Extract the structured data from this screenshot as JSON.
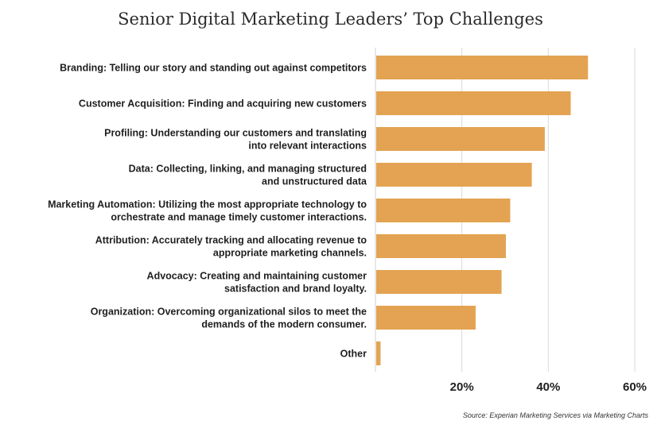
{
  "chart_data": {
    "type": "bar",
    "orientation": "horizontal",
    "title": "Senior Digital Marketing Leaders’ Top Challenges",
    "categories": [
      [
        "Branding: Telling our story and standing out against competitors"
      ],
      [
        "Customer Acquisition: Finding and acquiring new customers"
      ],
      [
        "Profiling: Understanding our customers and translating",
        "into relevant interactions"
      ],
      [
        "Data: Collecting, linking, and managing structured",
        "and unstructured data"
      ],
      [
        "Marketing Automation: Utilizing the most appropriate technology to",
        "orchestrate and manage timely customer interactions."
      ],
      [
        "Attribution: Accurately tracking and allocating revenue to",
        "appropriate marketing channels."
      ],
      [
        "Advocacy: Creating and maintaining customer",
        "satisfaction and brand loyalty."
      ],
      [
        "Organization: Overcoming organizational silos to meet the",
        "demands of the modern consumer."
      ],
      [
        "Other"
      ]
    ],
    "values": [
      49,
      45,
      39,
      36,
      31,
      30,
      29,
      23,
      1
    ],
    "xlim": [
      0,
      60
    ],
    "xticks": [
      20,
      40,
      60
    ],
    "xtick_labels": [
      "20%",
      "40%",
      "60%"
    ],
    "grid": true,
    "bar_color": "#E3A352",
    "grid_color": "#d9d9d9"
  },
  "source": "Source: Experian Marketing Services via Marketing Charts"
}
